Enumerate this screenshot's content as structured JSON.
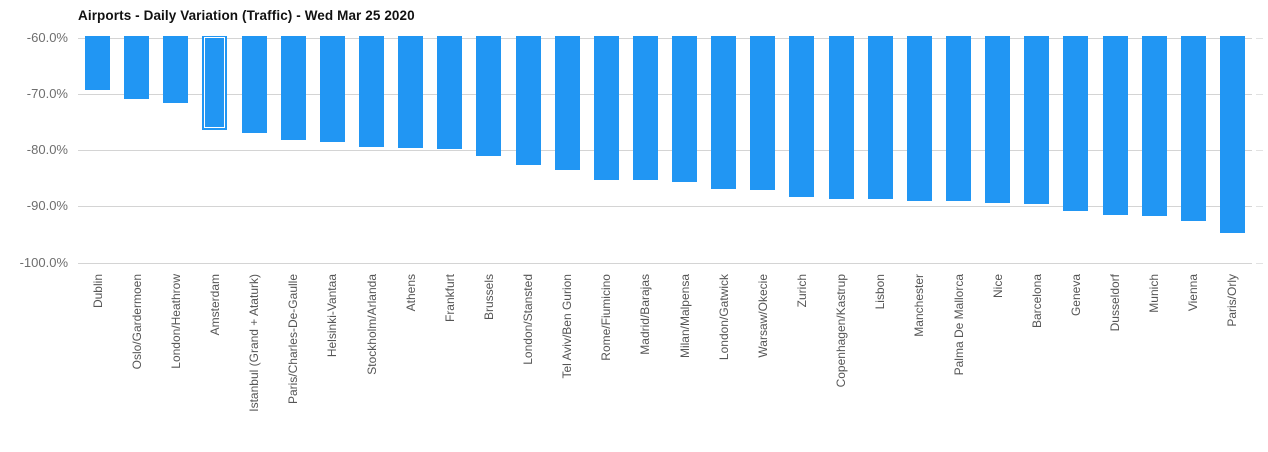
{
  "chart_data": {
    "type": "bar",
    "title": "Airports - Daily Variation (Traffic) - Wed Mar 25 2020",
    "xlabel": "",
    "ylabel": "",
    "value_format": "percent",
    "ylim": [
      -100,
      -60
    ],
    "yticks": [
      "-60.0%",
      "-70.0%",
      "-80.0%",
      "-90.0%",
      "-100.0%"
    ],
    "ytick_values": [
      -60,
      -70,
      -80,
      -90,
      -100
    ],
    "grid": true,
    "legend": "none",
    "bar_color": "#2196f3",
    "gridline_color": "#d4d4d4",
    "axis_label_color": "#6e6e6e",
    "category_label_color": "#555555",
    "selected_category": "Amsterdam",
    "categories": [
      "Dublin",
      "Oslo/Gardermoen",
      "London/Heathrow",
      "Amsterdam",
      "Istanbul (Grand + Ataturk)",
      "Paris/Charles-De-Gaulle",
      "Helsinki-Vantaa",
      "Stockholm/Arlanda",
      "Athens",
      "Frankfurt",
      "Brussels",
      "London/Stansted",
      "Tel Aviv/Ben Gurion",
      "Rome/Fiumicino",
      "Madrid/Barajas",
      "Milan/Malpensa",
      "London/Gatwick",
      "Warsaw/Okecie",
      "Zurich",
      "Copenhagen/Kastrup",
      "Lisbon",
      "Manchester",
      "Palma De Mallorca",
      "Nice",
      "Barcelona",
      "Geneva",
      "Dusseldorf",
      "Munich",
      "Vienna",
      "Paris/Orly"
    ],
    "values": [
      -69.3,
      -70.9,
      -71.7,
      -76.4,
      -77.0,
      -78.3,
      -78.5,
      -79.5,
      -79.6,
      -79.9,
      -81.0,
      -82.7,
      -83.6,
      -85.3,
      -85.4,
      -85.6,
      -86.9,
      -87.1,
      -88.4,
      -88.7,
      -88.7,
      -89.0,
      -89.1,
      -89.4,
      -89.6,
      -90.9,
      -91.6,
      -91.8,
      -92.7,
      -94.7
    ]
  }
}
